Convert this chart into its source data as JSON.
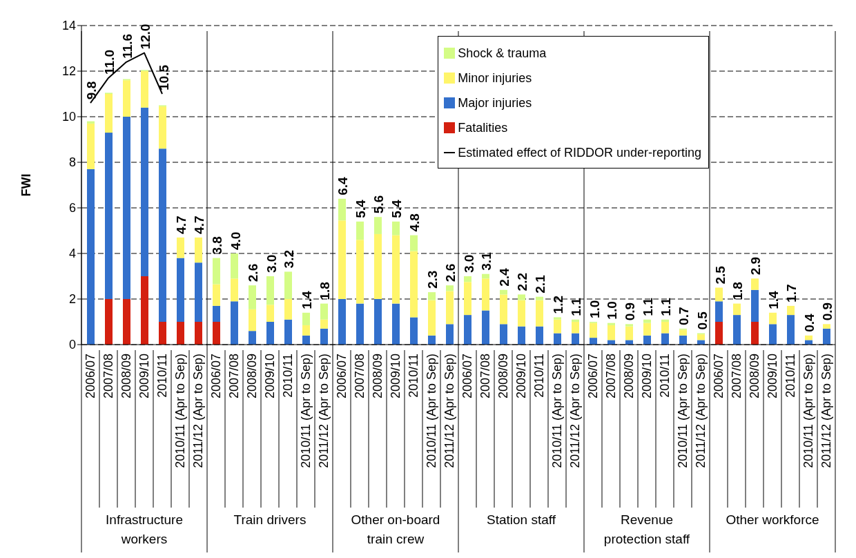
{
  "chart_data": {
    "type": "bar",
    "stacked": true,
    "ylabel": "FWI",
    "categories": [
      "2006/07",
      "2007/08",
      "2008/09",
      "2009/10",
      "2010/11",
      "2010/11 (Apr to Sep)",
      "2011/12 (Apr to Sep)",
      "2006/07",
      "2007/08",
      "2008/09",
      "2009/10",
      "2010/11",
      "2010/11 (Apr to Sep)",
      "2011/12 (Apr to Sep)",
      "2006/07",
      "2007/08",
      "2008/09",
      "2009/10",
      "2010/11",
      "2010/11 (Apr to Sep)",
      "2011/12 (Apr to Sep)",
      "2006/07",
      "2007/08",
      "2008/09",
      "2009/10",
      "2010/11",
      "2010/11 (Apr to Sep)",
      "2011/12 (Apr to Sep)",
      "2006/07",
      "2007/08",
      "2008/09",
      "2009/10",
      "2010/11",
      "2010/11 (Apr to Sep)",
      "2011/12 (Apr to Sep)",
      "2006/07",
      "2007/08",
      "2008/09",
      "2009/10",
      "2010/11",
      "2010/11 (Apr to Sep)",
      "2011/12 (Apr to Sep)"
    ],
    "series": [
      {
        "name": "Fatalities",
        "color": "#d42010",
        "values": [
          0,
          2.0,
          2.0,
          3.0,
          1.0,
          1.0,
          1.0,
          1.0,
          0,
          0,
          0,
          0,
          0,
          0,
          0,
          0,
          0,
          0,
          0,
          0,
          0,
          0,
          0,
          0,
          0,
          0,
          0,
          0,
          0,
          0,
          0,
          0,
          0,
          0,
          0,
          1.0,
          0,
          1.0,
          0,
          0,
          0,
          0
        ]
      },
      {
        "name": "Major injuries",
        "color": "#3370cc",
        "values": [
          7.7,
          7.3,
          8.0,
          7.4,
          7.6,
          2.8,
          2.6,
          0.7,
          1.9,
          0.6,
          1.0,
          1.1,
          0.4,
          0.7,
          2.0,
          1.8,
          2.0,
          1.8,
          1.2,
          0.4,
          0.9,
          1.3,
          1.5,
          0.9,
          0.8,
          0.8,
          0.5,
          0.5,
          0.3,
          0.2,
          0.2,
          0.4,
          0.5,
          0.4,
          0.2,
          0.9,
          1.3,
          1.4,
          0.9,
          1.3,
          0.2,
          0.7
        ]
      },
      {
        "name": "Minor injuries",
        "color": "#fff56a",
        "values": [
          2.0,
          1.7,
          1.6,
          1.6,
          1.85,
          0.9,
          1.1,
          0.95,
          1.0,
          0.95,
          0.75,
          0.9,
          0.45,
          0.4,
          3.45,
          2.8,
          2.85,
          3.0,
          2.9,
          1.55,
          1.45,
          1.45,
          1.4,
          1.3,
          1.15,
          1.15,
          0.6,
          0.5,
          0.65,
          0.65,
          0.6,
          0.55,
          0.5,
          0.25,
          0.25,
          0.6,
          0.5,
          0.5,
          0.5,
          0.4,
          0.2,
          0.2
        ]
      },
      {
        "name": "Shock & trauma",
        "color": "#d4fc86",
        "values": [
          0.1,
          0.05,
          0.05,
          0.05,
          0.05,
          0,
          0,
          1.15,
          1.1,
          1.05,
          1.25,
          1.2,
          0.55,
          0.7,
          0.95,
          0.8,
          0.75,
          0.6,
          0.7,
          0.35,
          0.25,
          0.25,
          0.2,
          0.2,
          0.25,
          0.15,
          0.1,
          0.1,
          0.05,
          0.1,
          0.1,
          0.15,
          0.1,
          0.05,
          0.05,
          0,
          0,
          0,
          0,
          0,
          0,
          0
        ]
      },
      {
        "name": "Estimated effect of RIDDOR under-reporting",
        "type": "line",
        "color": "#000000",
        "values": [
          10.6,
          11.7,
          12.4,
          12.8,
          11.0,
          null,
          null,
          null,
          null,
          null,
          null,
          null,
          null,
          null,
          null,
          null,
          null,
          null,
          null,
          null,
          null,
          null,
          null,
          null,
          null,
          null,
          null,
          null,
          null,
          null,
          null,
          null,
          null,
          null,
          null,
          null,
          null,
          null,
          null,
          null,
          null,
          null
        ]
      }
    ],
    "totals": [
      "9.8",
      "11.0",
      "11.6",
      "12.0",
      "10.5",
      "4.7",
      "4.7",
      "3.8",
      "4.0",
      "2.6",
      "3.0",
      "3.2",
      "1.4",
      "1.8",
      "6.4",
      "5.4",
      "5.6",
      "5.4",
      "4.8",
      "2.3",
      "2.6",
      "3.0",
      "3.1",
      "2.4",
      "2.2",
      "2.1",
      "1.2",
      "1.1",
      "1.0",
      "1.0",
      "0.9",
      "1.1",
      "1.1",
      "0.7",
      "0.5",
      "2.5",
      "1.8",
      "2.9",
      "1.4",
      "1.7",
      "0.4",
      "0.9"
    ],
    "annotations": [
      "Infrastructure workers",
      "Train drivers",
      "Other on-board train crew",
      "Station staff",
      "Revenue protection staff",
      "Other workforce"
    ],
    "ylim": [
      0,
      14
    ],
    "yticks": [
      0,
      2,
      4,
      6,
      8,
      10,
      12,
      14
    ],
    "grid": "y",
    "legend": "top right"
  }
}
